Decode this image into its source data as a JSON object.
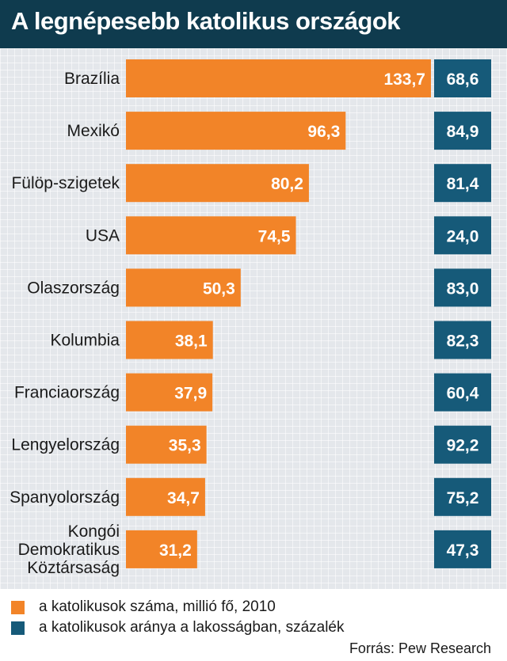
{
  "title": "A legnépesebb katolikus országok",
  "colors": {
    "header_bg": "#0f3b4e",
    "series_1": "#f28428",
    "series_2": "#165a79"
  },
  "chart_data": {
    "type": "bar",
    "orientation": "horizontal",
    "categories": [
      "Brazília",
      "Mexikó",
      "Fülöp-szigetek",
      "USA",
      "Olaszország",
      "Kolumbia",
      "Franciaország",
      "Lengyelország",
      "Spanyolország",
      "Kongói Demokratikus Köztársaság"
    ],
    "series": [
      {
        "name": "a katolikusok száma, millió fő, 2010",
        "values": [
          133.7,
          96.3,
          80.2,
          74.5,
          50.3,
          38.1,
          37.9,
          35.3,
          34.7,
          31.2
        ],
        "labels": [
          "133,7",
          "96,3",
          "80,2",
          "74,5",
          "50,3",
          "38,1",
          "37,9",
          "35,3",
          "34,7",
          "31,2"
        ]
      },
      {
        "name": "a katolikusok aránya a lakosságban, százalék",
        "values": [
          68.6,
          84.9,
          81.4,
          24.0,
          83.0,
          82.3,
          60.4,
          92.2,
          75.2,
          47.3
        ],
        "labels": [
          "68,6",
          "84,9",
          "81,4",
          "24,0",
          "83,0",
          "82,3",
          "60,4",
          "92,2",
          "75,2",
          "47,3"
        ]
      }
    ],
    "xlim": [
      0,
      133.7
    ],
    "grid": true,
    "legend_position": "bottom"
  },
  "source": "Forrás: Pew Research"
}
